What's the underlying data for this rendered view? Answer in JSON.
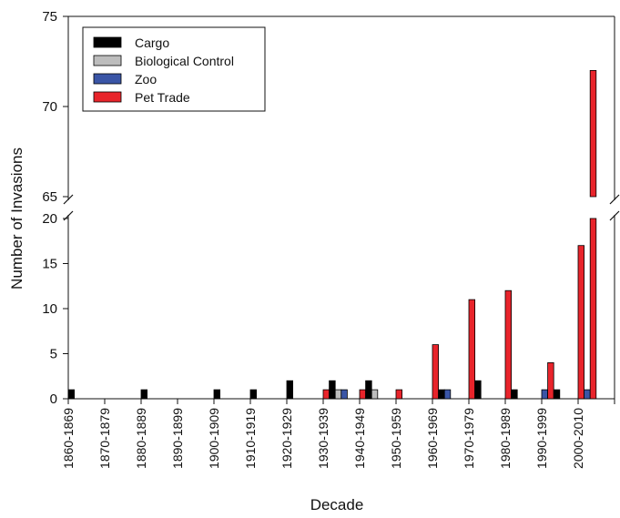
{
  "chart_data": {
    "type": "bar",
    "xlabel": "Decade",
    "ylabel": "Number of Invasions",
    "broken_axis": true,
    "ylim_lower": [
      0,
      20
    ],
    "ylim_upper": [
      65,
      75
    ],
    "yticks_lower": [
      "0",
      "5",
      "10",
      "15",
      "20"
    ],
    "yticks_upper": [
      "65",
      "70",
      "75"
    ],
    "legend_position": "top-left",
    "categories": [
      "1860-1869",
      "1870-1879",
      "1880-1889",
      "1890-1899",
      "1900-1909",
      "1910-1919",
      "1920-1929",
      "1930-1939",
      "1940-1949",
      "1950-1959",
      "1960-1969",
      "1970-1979",
      "1980-1989",
      "1990-1999",
      "2000-2010"
    ],
    "bar_groups": [
      [
        {
          "series": 0,
          "value": 1
        }
      ],
      [],
      [
        {
          "series": 0,
          "value": 1
        }
      ],
      [],
      [
        {
          "series": 0,
          "value": 1
        }
      ],
      [
        {
          "series": 0,
          "value": 1
        }
      ],
      [
        {
          "series": 0,
          "value": 2
        }
      ],
      [
        {
          "series": 3,
          "value": 1
        },
        {
          "series": 0,
          "value": 2
        },
        {
          "series": 1,
          "value": 1
        },
        {
          "series": 2,
          "value": 1
        }
      ],
      [
        {
          "series": 3,
          "value": 1
        },
        {
          "series": 0,
          "value": 2
        },
        {
          "series": 1,
          "value": 1
        }
      ],
      [
        {
          "series": 3,
          "value": 1
        }
      ],
      [
        {
          "series": 3,
          "value": 6
        },
        {
          "series": 0,
          "value": 1
        },
        {
          "series": 2,
          "value": 1
        }
      ],
      [
        {
          "series": 3,
          "value": 11
        },
        {
          "series": 0,
          "value": 2
        }
      ],
      [
        {
          "series": 3,
          "value": 12
        },
        {
          "series": 0,
          "value": 1
        }
      ],
      [
        {
          "series": 2,
          "value": 1
        },
        {
          "series": 3,
          "value": 4
        },
        {
          "series": 0,
          "value": 1
        }
      ],
      [
        {
          "series": 3,
          "value": 17
        },
        {
          "series": 2,
          "value": 1
        },
        {
          "series": 3,
          "value": 72
        }
      ]
    ],
    "series": [
      {
        "name": "Cargo",
        "color": "#000000"
      },
      {
        "name": "Biological Control",
        "color": "#bdbdbd"
      },
      {
        "name": "Zoo",
        "color": "#3a55a6"
      },
      {
        "name": "Pet Trade",
        "color": "#e8242b"
      }
    ]
  }
}
